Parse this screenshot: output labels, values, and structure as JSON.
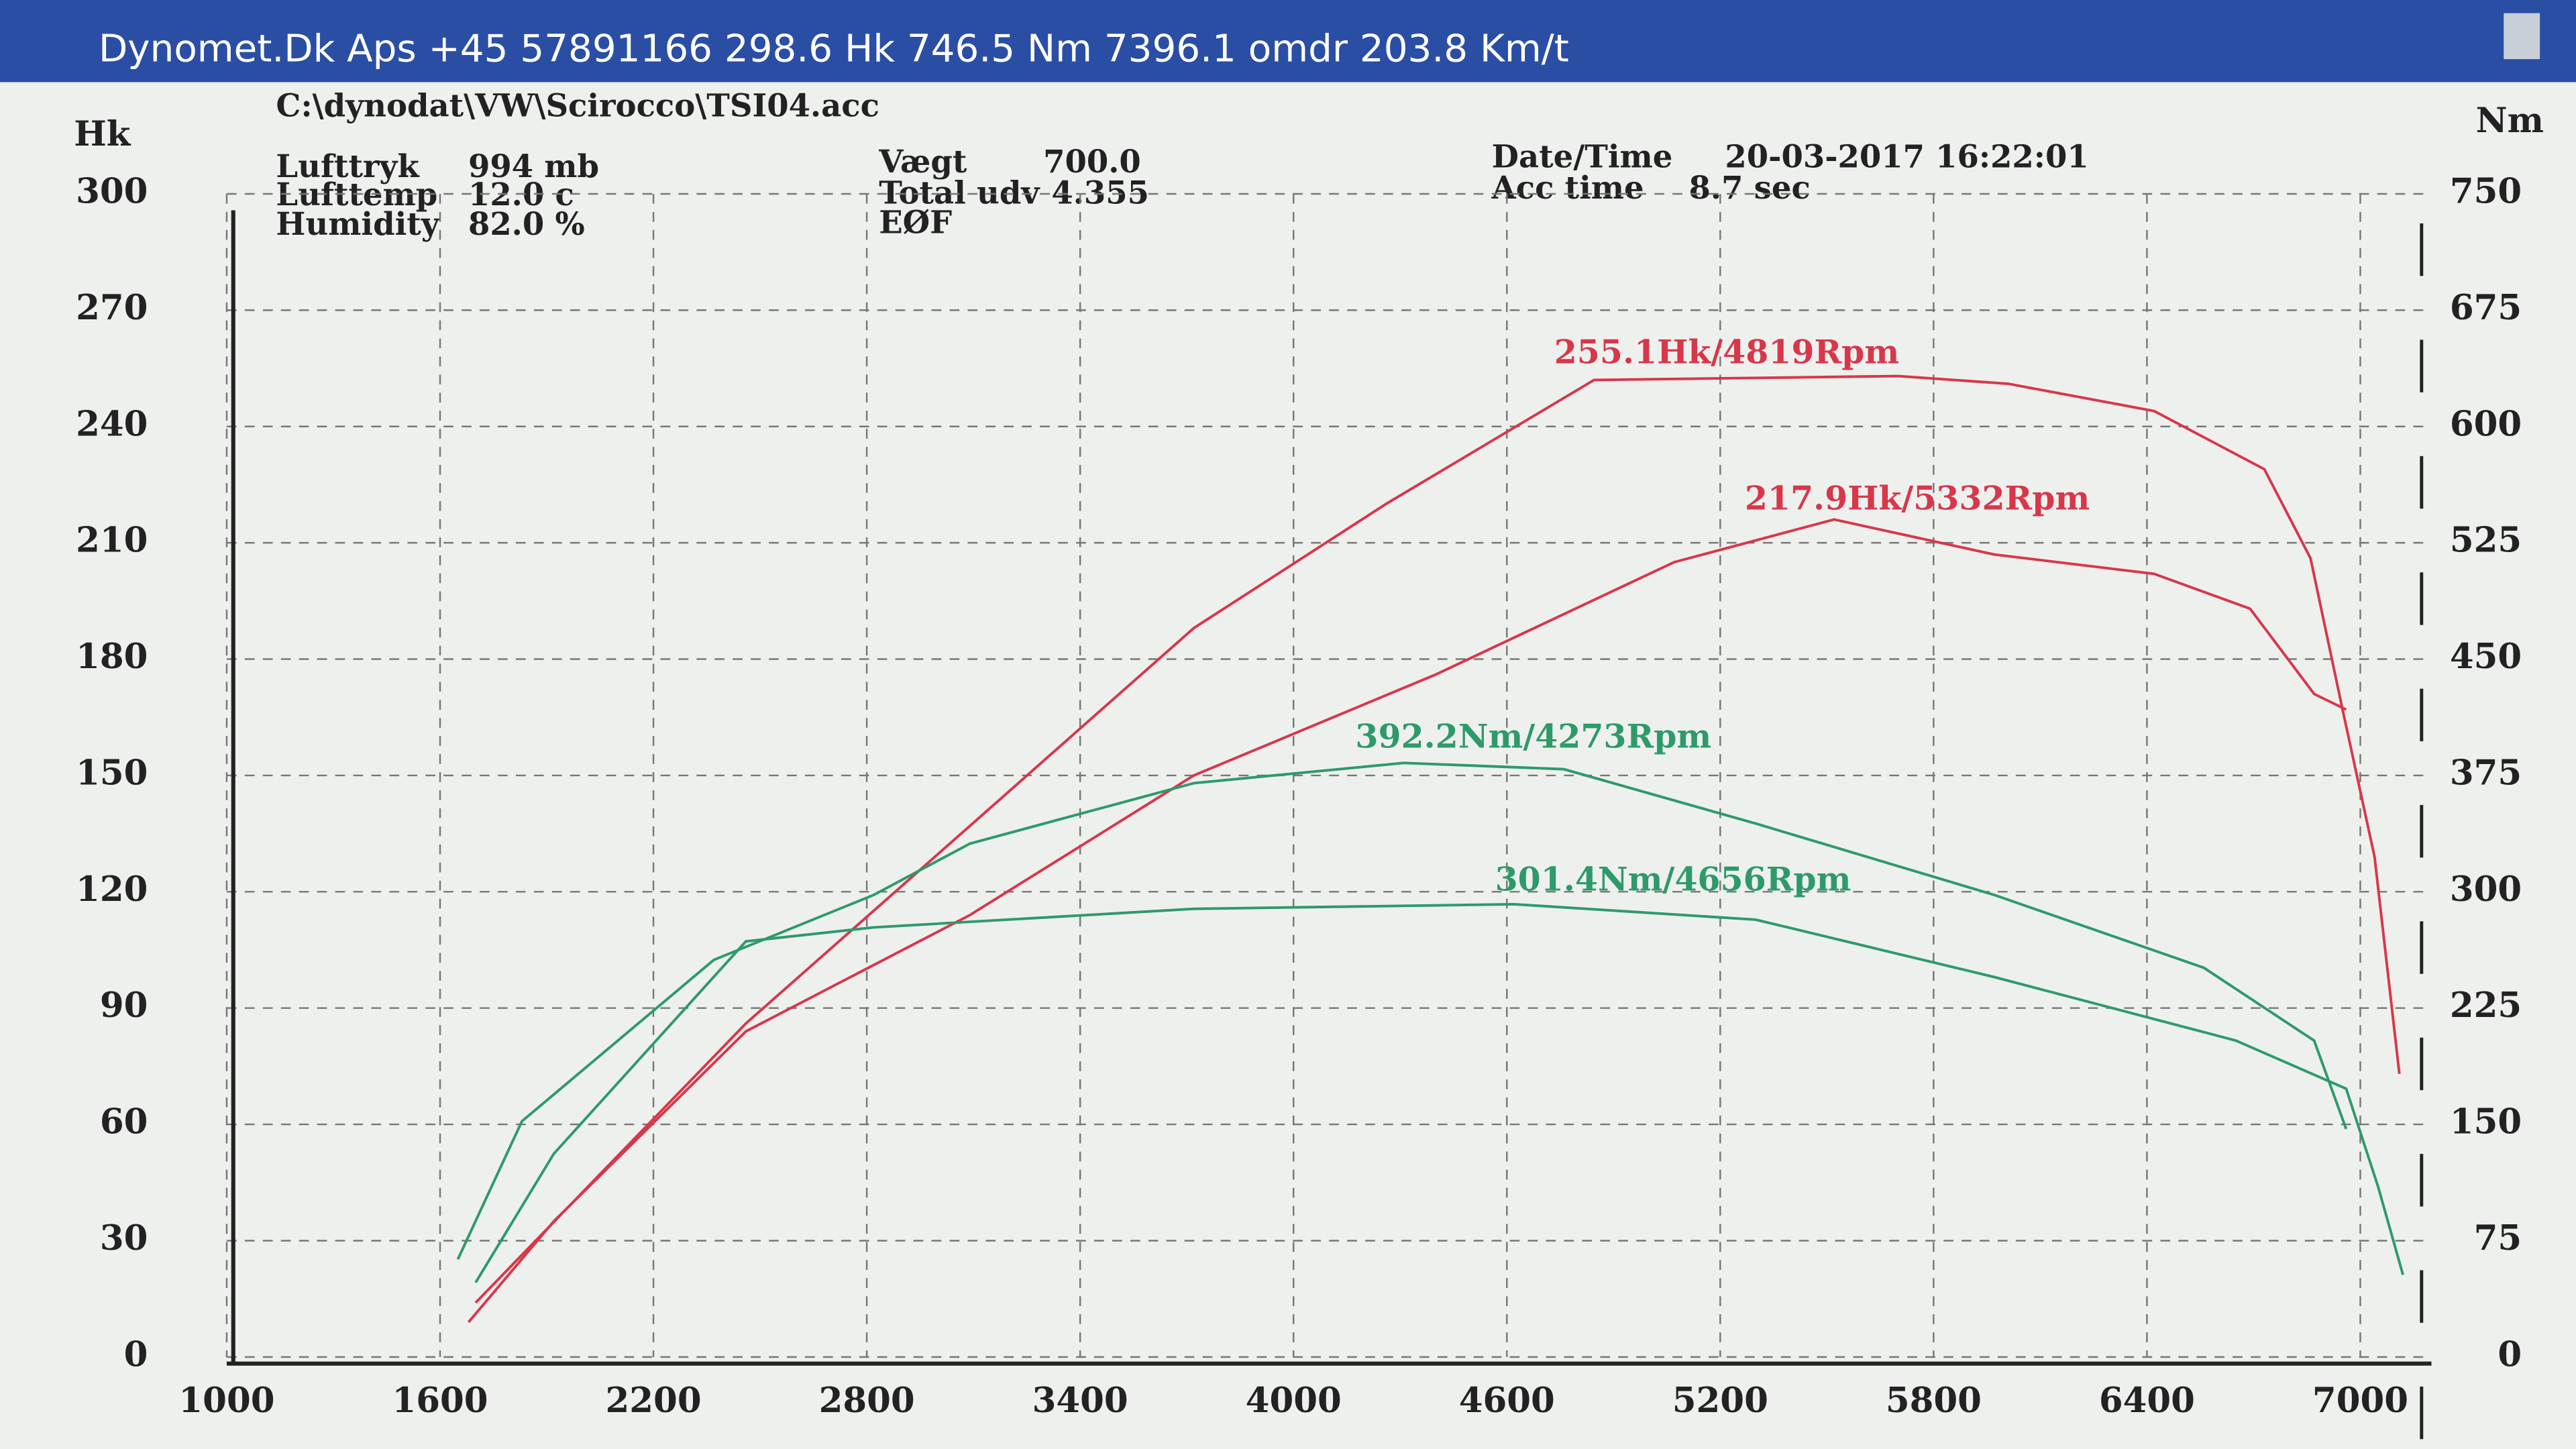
{
  "chart_data": {
    "type": "line",
    "title": "Dynomet.Dk Aps +45 57891166  298.6 Hk 746.5 Nm 7396.1 omdr 203.8 Km/t",
    "file": "C:\\dynodat\\VW\\Scirocco\\TSI04.acc",
    "info": [
      {
        "label": "Lufttryk",
        "value": "994 mb"
      },
      {
        "label": "Lufttemp",
        "value": "12.0 c"
      },
      {
        "label": "Humidity",
        "value": "82.0 %"
      },
      {
        "label": "Vægt",
        "value": "700.0"
      },
      {
        "label": "Total udv",
        "value": "4.355"
      },
      {
        "label": "EØF",
        "value": ""
      },
      {
        "label": "Date/Time",
        "value": "20-03-2017 16:22:01"
      },
      {
        "label": "Acc time",
        "value": "8.7 sec"
      }
    ],
    "ylabel": "Hk",
    "y2label": "Nm",
    "xlim": [
      1000,
      7200
    ],
    "xticks": [
      1000,
      1600,
      2200,
      2800,
      3400,
      4000,
      4600,
      5200,
      5800,
      6400,
      7000
    ],
    "ylim": [
      0,
      300
    ],
    "yticks": [
      0,
      30,
      60,
      90,
      120,
      150,
      180,
      210,
      240,
      270,
      300
    ],
    "y2lim": [
      0,
      750
    ],
    "y2ticks": [
      0,
      75,
      150,
      225,
      300,
      375,
      450,
      525,
      600,
      675,
      750
    ],
    "grid": true,
    "series": [
      {
        "color": "#d8374a",
        "x": [
          1700,
          2460,
          3090,
          3720,
          4260,
          4845,
          5700,
          6010,
          6420,
          6730,
          6860,
          6950,
          7040,
          7110
        ],
        "values": [
          14,
          86,
          137,
          188,
          220,
          252,
          253,
          251,
          244,
          229,
          206,
          167,
          129,
          73
        ]
      },
      {
        "color": "#d8374a",
        "x": [
          1680,
          1920,
          2460,
          3090,
          3720,
          4400,
          5070,
          5520,
          5970,
          6420,
          6690,
          6870,
          6960
        ],
        "values": [
          9,
          35,
          84,
          114,
          150,
          176,
          205,
          216,
          207,
          202,
          193,
          171,
          167
        ]
      },
      {
        "color": "#2e9a6a",
        "axis": "y2",
        "x": [
          1650,
          1830,
          2370,
          2820,
          3090,
          3720,
          4310,
          4760,
          5300,
          5970,
          6560,
          6870,
          6960
        ],
        "values": [
          63,
          152,
          256,
          298,
          331,
          370,
          383,
          379,
          344,
          298,
          251,
          204,
          147
        ]
      },
      {
        "color": "#2e9a6a",
        "axis": "y2",
        "x": [
          1700,
          1920,
          2460,
          2820,
          3720,
          4620,
          5300,
          5970,
          6650,
          6960,
          7050,
          7120
        ],
        "values": [
          48,
          131,
          268,
          277,
          289,
          292,
          282,
          245,
          204,
          173,
          110,
          53
        ]
      }
    ],
    "annotations": [
      "255.1Hk/4819Rpm",
      "217.9Hk/5332Rpm",
      "392.2Nm/4273Rpm",
      "301.4Nm/4656Rpm"
    ]
  }
}
